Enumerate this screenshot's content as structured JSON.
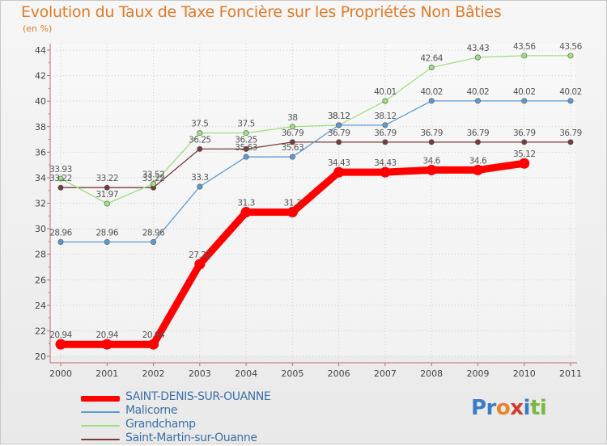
{
  "title": "Evolution du Taux de Taxe Foncière sur les Propriétés Non Bâties",
  "unit": "(en %)",
  "brand": {
    "parts": [
      "Pr",
      "o",
      "x",
      "i",
      "ti"
    ],
    "colors": [
      "#3b7cc4",
      "#e8842a",
      "#d23a2a",
      "#3b7cc4",
      "#7cb842"
    ]
  },
  "chart_data": {
    "type": "line",
    "title": "Evolution du Taux de Taxe Foncière sur les Propriétés Non Bâties",
    "ylabel": "(en %)",
    "xlabel": "",
    "categories": [
      "2000",
      "2001",
      "2002",
      "2003",
      "2004",
      "2005",
      "2006",
      "2007",
      "2008",
      "2009",
      "2010",
      "2011"
    ],
    "y_ticks": [
      "20",
      "22",
      "24",
      "26",
      "28",
      "30",
      "32",
      "34",
      "36",
      "38",
      "40",
      "42",
      "44"
    ],
    "ylim": [
      20,
      44
    ],
    "legend_position": "bottom-left",
    "series": [
      {
        "name": "SAINT-DENIS-SUR-OUANNE",
        "color": "#ff0000",
        "values": [
          20.94,
          20.94,
          20.94,
          27.22,
          31.3,
          31.3,
          34.43,
          34.43,
          34.6,
          34.6,
          35.12,
          null
        ],
        "labels": [
          "20.94",
          "20.94",
          "20.94",
          "27.22",
          "31.3",
          "31.3",
          "34.43",
          "34.43",
          "34.6",
          "34.6",
          "35.12",
          ""
        ]
      },
      {
        "name": "Malicorne",
        "color": "#5b9bd5",
        "values": [
          28.96,
          28.96,
          28.96,
          33.3,
          35.63,
          35.63,
          38.12,
          38.12,
          40.02,
          40.02,
          40.02,
          40.02
        ],
        "labels": [
          "28.96",
          "28.96",
          "28.96",
          "33.3",
          "35.63",
          "35.63",
          "38.12",
          "38.12",
          "40.02",
          "40.02",
          "40.02",
          "40.02"
        ]
      },
      {
        "name": "Grandchamp",
        "color": "#9ee080",
        "values": [
          33.93,
          31.97,
          33.52,
          37.5,
          37.5,
          38,
          38.12,
          40.01,
          42.64,
          43.43,
          43.56,
          43.56
        ],
        "labels": [
          "33.93",
          "31.97",
          "33.52",
          "37.5",
          "37.5",
          "38",
          "38.12",
          "40.01",
          "42.64",
          "43.43",
          "43.56",
          "43.56"
        ]
      },
      {
        "name": "Saint-Martin-sur-Ouanne",
        "color": "#7a3b3b",
        "values": [
          33.22,
          33.22,
          33.22,
          36.25,
          36.25,
          36.79,
          36.79,
          36.79,
          36.79,
          36.79,
          36.79,
          36.79
        ],
        "labels": [
          "33.22",
          "33.22",
          "33.22",
          "36.25",
          "36.25",
          "36.79",
          "36.79",
          "36.79",
          "36.79",
          "36.79",
          "36.79",
          "36.79"
        ]
      }
    ]
  }
}
